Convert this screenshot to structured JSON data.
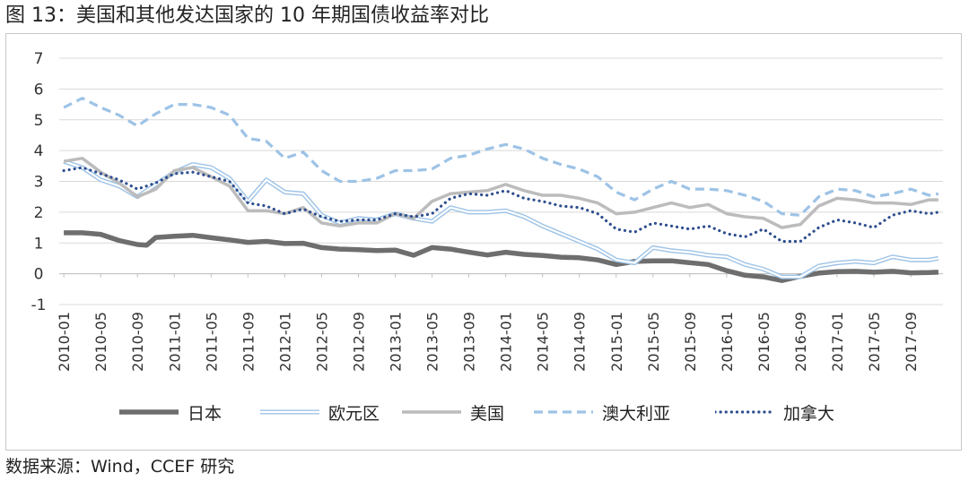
{
  "header": {
    "title": "图 13：美国和其他发达国家的 10 年期国债收益率对比"
  },
  "footer": {
    "source": "数据来源：Wind，CCEF 研究"
  },
  "chart_data": {
    "type": "line",
    "title": "",
    "xlabel": "",
    "ylabel": "",
    "ylim": [
      -1,
      7
    ],
    "yticks": [
      -1,
      0,
      1,
      2,
      3,
      4,
      5,
      6,
      7
    ],
    "grid": "horizontal",
    "legend_position": "bottom",
    "x_tick_labels": [
      "2010-01",
      "2010-05",
      "2010-09",
      "2011-01",
      "2011-05",
      "2011-09",
      "2012-01",
      "2012-05",
      "2012-09",
      "2013-01",
      "2013-05",
      "2013-09",
      "2014-01",
      "2014-05",
      "2014-09",
      "2015-01",
      "2015-05",
      "2015-09",
      "2016-01",
      "2016-05",
      "2016-09",
      "2017-01",
      "2017-05",
      "2017-09"
    ],
    "x_start": "2010-01",
    "x_end": "2017-12",
    "series": [
      {
        "name": "日本",
        "color": "#6e6e6e",
        "style": "solid-thick",
        "points": [
          [
            "2010-01",
            1.33
          ],
          [
            "2010-03",
            1.33
          ],
          [
            "2010-05",
            1.28
          ],
          [
            "2010-07",
            1.08
          ],
          [
            "2010-09",
            0.95
          ],
          [
            "2010-10",
            0.93
          ],
          [
            "2010-11",
            1.18
          ],
          [
            "2011-01",
            1.22
          ],
          [
            "2011-03",
            1.25
          ],
          [
            "2011-05",
            1.17
          ],
          [
            "2011-07",
            1.1
          ],
          [
            "2011-09",
            1.02
          ],
          [
            "2011-11",
            1.05
          ],
          [
            "2012-01",
            0.98
          ],
          [
            "2012-03",
            0.99
          ],
          [
            "2012-05",
            0.85
          ],
          [
            "2012-07",
            0.8
          ],
          [
            "2012-09",
            0.78
          ],
          [
            "2012-11",
            0.75
          ],
          [
            "2013-01",
            0.77
          ],
          [
            "2013-03",
            0.6
          ],
          [
            "2013-05",
            0.85
          ],
          [
            "2013-07",
            0.8
          ],
          [
            "2013-09",
            0.7
          ],
          [
            "2013-11",
            0.61
          ],
          [
            "2014-01",
            0.7
          ],
          [
            "2014-03",
            0.63
          ],
          [
            "2014-05",
            0.59
          ],
          [
            "2014-07",
            0.54
          ],
          [
            "2014-09",
            0.52
          ],
          [
            "2014-11",
            0.45
          ],
          [
            "2015-01",
            0.3
          ],
          [
            "2015-03",
            0.4
          ],
          [
            "2015-05",
            0.42
          ],
          [
            "2015-07",
            0.42
          ],
          [
            "2015-09",
            0.36
          ],
          [
            "2015-11",
            0.3
          ],
          [
            "2016-01",
            0.1
          ],
          [
            "2016-03",
            -0.05
          ],
          [
            "2016-05",
            -0.1
          ],
          [
            "2016-07",
            -0.22
          ],
          [
            "2016-09",
            -0.08
          ],
          [
            "2016-11",
            0.02
          ],
          [
            "2017-01",
            0.07
          ],
          [
            "2017-03",
            0.08
          ],
          [
            "2017-05",
            0.05
          ],
          [
            "2017-07",
            0.08
          ],
          [
            "2017-09",
            0.03
          ],
          [
            "2017-11",
            0.04
          ],
          [
            "2017-12",
            0.05
          ]
        ]
      },
      {
        "name": "欧元区",
        "color": "#9dc3e6",
        "style": "double",
        "points": [
          [
            "2010-01",
            3.65
          ],
          [
            "2010-03",
            3.45
          ],
          [
            "2010-05",
            3.05
          ],
          [
            "2010-07",
            2.85
          ],
          [
            "2010-09",
            2.5
          ],
          [
            "2010-11",
            2.9
          ],
          [
            "2011-01",
            3.3
          ],
          [
            "2011-03",
            3.55
          ],
          [
            "2011-05",
            3.45
          ],
          [
            "2011-07",
            3.1
          ],
          [
            "2011-09",
            2.35
          ],
          [
            "2011-11",
            3.05
          ],
          [
            "2012-01",
            2.65
          ],
          [
            "2012-03",
            2.6
          ],
          [
            "2012-05",
            1.9
          ],
          [
            "2012-07",
            1.65
          ],
          [
            "2012-09",
            1.8
          ],
          [
            "2012-11",
            1.75
          ],
          [
            "2013-01",
            1.95
          ],
          [
            "2013-03",
            1.8
          ],
          [
            "2013-05",
            1.7
          ],
          [
            "2013-07",
            2.15
          ],
          [
            "2013-09",
            2.0
          ],
          [
            "2013-11",
            2.0
          ],
          [
            "2014-01",
            2.05
          ],
          [
            "2014-03",
            1.85
          ],
          [
            "2014-05",
            1.55
          ],
          [
            "2014-07",
            1.3
          ],
          [
            "2014-09",
            1.05
          ],
          [
            "2014-11",
            0.8
          ],
          [
            "2015-01",
            0.45
          ],
          [
            "2015-03",
            0.35
          ],
          [
            "2015-05",
            0.85
          ],
          [
            "2015-07",
            0.75
          ],
          [
            "2015-09",
            0.7
          ],
          [
            "2015-11",
            0.6
          ],
          [
            "2016-01",
            0.55
          ],
          [
            "2016-03",
            0.3
          ],
          [
            "2016-05",
            0.15
          ],
          [
            "2016-07",
            -0.1
          ],
          [
            "2016-09",
            -0.1
          ],
          [
            "2016-11",
            0.25
          ],
          [
            "2017-01",
            0.35
          ],
          [
            "2017-03",
            0.4
          ],
          [
            "2017-05",
            0.35
          ],
          [
            "2017-07",
            0.55
          ],
          [
            "2017-09",
            0.45
          ],
          [
            "2017-11",
            0.45
          ],
          [
            "2017-12",
            0.5
          ]
        ]
      },
      {
        "name": "美国",
        "color": "#bcbcbc",
        "style": "solid",
        "points": [
          [
            "2010-01",
            3.65
          ],
          [
            "2010-03",
            3.75
          ],
          [
            "2010-05",
            3.3
          ],
          [
            "2010-07",
            2.95
          ],
          [
            "2010-09",
            2.5
          ],
          [
            "2010-11",
            2.75
          ],
          [
            "2011-01",
            3.35
          ],
          [
            "2011-03",
            3.45
          ],
          [
            "2011-05",
            3.15
          ],
          [
            "2011-07",
            2.85
          ],
          [
            "2011-09",
            2.05
          ],
          [
            "2011-11",
            2.05
          ],
          [
            "2012-01",
            1.95
          ],
          [
            "2012-03",
            2.15
          ],
          [
            "2012-05",
            1.65
          ],
          [
            "2012-07",
            1.55
          ],
          [
            "2012-09",
            1.65
          ],
          [
            "2012-11",
            1.65
          ],
          [
            "2013-01",
            1.95
          ],
          [
            "2013-03",
            1.8
          ],
          [
            "2013-05",
            2.35
          ],
          [
            "2013-07",
            2.6
          ],
          [
            "2013-09",
            2.65
          ],
          [
            "2013-11",
            2.7
          ],
          [
            "2014-01",
            2.9
          ],
          [
            "2014-03",
            2.7
          ],
          [
            "2014-05",
            2.55
          ],
          [
            "2014-07",
            2.55
          ],
          [
            "2014-09",
            2.45
          ],
          [
            "2014-11",
            2.3
          ],
          [
            "2015-01",
            1.95
          ],
          [
            "2015-03",
            2.0
          ],
          [
            "2015-05",
            2.15
          ],
          [
            "2015-07",
            2.3
          ],
          [
            "2015-09",
            2.15
          ],
          [
            "2015-11",
            2.25
          ],
          [
            "2016-01",
            1.95
          ],
          [
            "2016-03",
            1.85
          ],
          [
            "2016-05",
            1.8
          ],
          [
            "2016-07",
            1.5
          ],
          [
            "2016-09",
            1.6
          ],
          [
            "2016-11",
            2.2
          ],
          [
            "2017-01",
            2.45
          ],
          [
            "2017-03",
            2.4
          ],
          [
            "2017-05",
            2.3
          ],
          [
            "2017-07",
            2.3
          ],
          [
            "2017-09",
            2.25
          ],
          [
            "2017-11",
            2.4
          ],
          [
            "2017-12",
            2.4
          ]
        ]
      },
      {
        "name": "澳大利亚",
        "color": "#9dc3e6",
        "style": "dashed",
        "points": [
          [
            "2010-01",
            5.4
          ],
          [
            "2010-03",
            5.7
          ],
          [
            "2010-05",
            5.4
          ],
          [
            "2010-07",
            5.15
          ],
          [
            "2010-09",
            4.8
          ],
          [
            "2010-11",
            5.2
          ],
          [
            "2011-01",
            5.5
          ],
          [
            "2011-03",
            5.5
          ],
          [
            "2011-05",
            5.4
          ],
          [
            "2011-07",
            5.15
          ],
          [
            "2011-09",
            4.4
          ],
          [
            "2011-11",
            4.3
          ],
          [
            "2012-01",
            3.75
          ],
          [
            "2012-03",
            3.95
          ],
          [
            "2012-05",
            3.35
          ],
          [
            "2012-07",
            3.0
          ],
          [
            "2012-09",
            3.0
          ],
          [
            "2012-11",
            3.1
          ],
          [
            "2013-01",
            3.35
          ],
          [
            "2013-03",
            3.35
          ],
          [
            "2013-05",
            3.4
          ],
          [
            "2013-07",
            3.75
          ],
          [
            "2013-09",
            3.85
          ],
          [
            "2013-11",
            4.05
          ],
          [
            "2014-01",
            4.2
          ],
          [
            "2014-03",
            4.05
          ],
          [
            "2014-05",
            3.75
          ],
          [
            "2014-07",
            3.55
          ],
          [
            "2014-09",
            3.4
          ],
          [
            "2014-11",
            3.15
          ],
          [
            "2015-01",
            2.65
          ],
          [
            "2015-03",
            2.4
          ],
          [
            "2015-05",
            2.75
          ],
          [
            "2015-07",
            3.0
          ],
          [
            "2015-09",
            2.75
          ],
          [
            "2015-11",
            2.75
          ],
          [
            "2016-01",
            2.7
          ],
          [
            "2016-03",
            2.55
          ],
          [
            "2016-05",
            2.35
          ],
          [
            "2016-07",
            1.95
          ],
          [
            "2016-09",
            1.9
          ],
          [
            "2016-11",
            2.5
          ],
          [
            "2017-01",
            2.75
          ],
          [
            "2017-03",
            2.7
          ],
          [
            "2017-05",
            2.5
          ],
          [
            "2017-07",
            2.6
          ],
          [
            "2017-09",
            2.75
          ],
          [
            "2017-11",
            2.55
          ],
          [
            "2017-12",
            2.6
          ]
        ]
      },
      {
        "name": "加拿大",
        "color": "#2e4e8f",
        "style": "dotted",
        "points": [
          [
            "2010-01",
            3.35
          ],
          [
            "2010-03",
            3.45
          ],
          [
            "2010-05",
            3.25
          ],
          [
            "2010-07",
            3.05
          ],
          [
            "2010-09",
            2.75
          ],
          [
            "2010-11",
            2.95
          ],
          [
            "2011-01",
            3.25
          ],
          [
            "2011-03",
            3.3
          ],
          [
            "2011-05",
            3.15
          ],
          [
            "2011-07",
            3.0
          ],
          [
            "2011-09",
            2.3
          ],
          [
            "2011-11",
            2.2
          ],
          [
            "2012-01",
            1.95
          ],
          [
            "2012-03",
            2.1
          ],
          [
            "2012-05",
            1.85
          ],
          [
            "2012-07",
            1.7
          ],
          [
            "2012-09",
            1.75
          ],
          [
            "2012-11",
            1.75
          ],
          [
            "2013-01",
            1.95
          ],
          [
            "2013-03",
            1.85
          ],
          [
            "2013-05",
            1.95
          ],
          [
            "2013-07",
            2.45
          ],
          [
            "2013-09",
            2.6
          ],
          [
            "2013-11",
            2.55
          ],
          [
            "2014-01",
            2.7
          ],
          [
            "2014-03",
            2.45
          ],
          [
            "2014-05",
            2.35
          ],
          [
            "2014-07",
            2.2
          ],
          [
            "2014-09",
            2.15
          ],
          [
            "2014-11",
            1.95
          ],
          [
            "2015-01",
            1.45
          ],
          [
            "2015-03",
            1.35
          ],
          [
            "2015-05",
            1.65
          ],
          [
            "2015-07",
            1.55
          ],
          [
            "2015-09",
            1.45
          ],
          [
            "2015-11",
            1.55
          ],
          [
            "2016-01",
            1.3
          ],
          [
            "2016-03",
            1.2
          ],
          [
            "2016-05",
            1.45
          ],
          [
            "2016-07",
            1.05
          ],
          [
            "2016-09",
            1.05
          ],
          [
            "2016-11",
            1.5
          ],
          [
            "2017-01",
            1.75
          ],
          [
            "2017-03",
            1.65
          ],
          [
            "2017-05",
            1.5
          ],
          [
            "2017-07",
            1.9
          ],
          [
            "2017-09",
            2.05
          ],
          [
            "2017-11",
            1.95
          ],
          [
            "2017-12",
            2.0
          ]
        ]
      }
    ]
  }
}
